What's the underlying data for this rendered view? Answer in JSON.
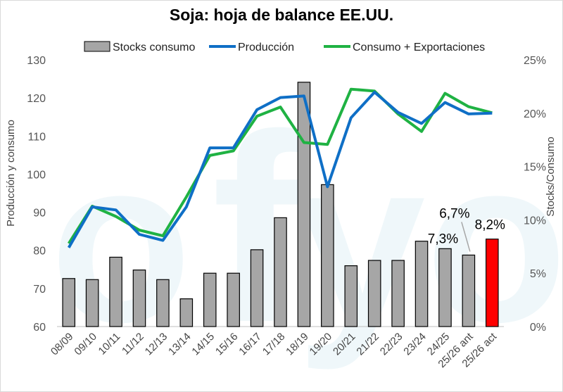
{
  "chart_data": {
    "type": "bar+line",
    "title": "Soja: hoja de balance EE.UU.",
    "ylabel_left": "Producción y consumo",
    "ylabel_right": "Stocks/Consumo",
    "ylim_left": [
      60,
      130
    ],
    "yticks_left": [
      60,
      70,
      80,
      90,
      100,
      110,
      120,
      130
    ],
    "ylim_right": [
      0,
      25
    ],
    "yticks_right": [
      "0%",
      "5%",
      "10%",
      "15%",
      "20%",
      "25%"
    ],
    "categories": [
      "08/09",
      "09/10",
      "10/11",
      "11/12",
      "12/13",
      "13/14",
      "14/15",
      "15/16",
      "16/17",
      "17/18",
      "18/19",
      "19/20",
      "20/21",
      "21/22",
      "22/23",
      "23/24",
      "24/25",
      "25/26 ant",
      "25/26 act"
    ],
    "series": [
      {
        "name": "Stocks consumo",
        "kind": "bar",
        "axis": "right",
        "color": "#a6a6a6",
        "values": [
          4.5,
          4.4,
          6.5,
          5.3,
          4.4,
          2.6,
          5.0,
          5.0,
          7.2,
          10.2,
          22.9,
          13.3,
          5.7,
          6.2,
          6.2,
          8.0,
          7.3,
          6.7,
          8.2
        ],
        "highlight": {
          "index": 18,
          "color": "#ff0000"
        }
      },
      {
        "name": "Producción",
        "kind": "line",
        "axis": "left",
        "color": "#0f6fc6",
        "values": [
          80.7,
          91.4,
          90.6,
          84.2,
          82.6,
          91.4,
          106.9,
          106.9,
          116.9,
          120.1,
          120.5,
          96.7,
          114.8,
          121.5,
          116.2,
          113.3,
          118.8,
          115.8,
          116.0
        ]
      },
      {
        "name": "Consumo + Exportaciones",
        "kind": "line",
        "axis": "left",
        "color": "#1fb243",
        "values": [
          81.8,
          91.6,
          88.9,
          85.3,
          83.8,
          94.0,
          104.9,
          106.1,
          115.2,
          117.6,
          108.3,
          107.8,
          122.3,
          121.8,
          115.8,
          111.2,
          121.2,
          117.7,
          116.1
        ]
      }
    ],
    "legend": {
      "position": "top",
      "items": [
        "Stocks consumo",
        "Producción",
        "Consumo + Exportaciones"
      ]
    },
    "annotations": [
      {
        "text": "7,3%",
        "for": "24/25"
      },
      {
        "text": "6,7%",
        "for": "25/26 ant"
      },
      {
        "text": "8,2%",
        "for": "25/26 act"
      }
    ],
    "grid": false
  }
}
